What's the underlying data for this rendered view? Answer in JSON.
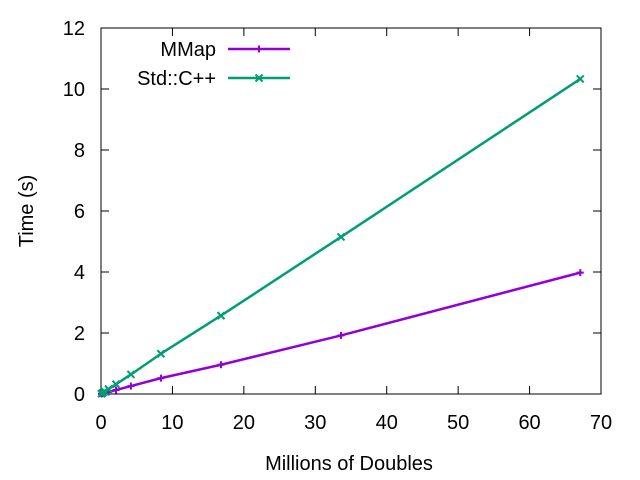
{
  "chart_data": {
    "type": "line",
    "title": "",
    "xlabel": "Millions of Doubles",
    "ylabel": "Time (s)",
    "xlim": [
      0,
      70
    ],
    "ylim": [
      0,
      12
    ],
    "xticks": [
      0,
      10,
      20,
      30,
      40,
      50,
      60,
      70
    ],
    "yticks": [
      0,
      2,
      4,
      6,
      8,
      10,
      12
    ],
    "grid": false,
    "legend_position": "top-left",
    "series": [
      {
        "name": "MMap",
        "color": "#9400d3",
        "marker": "plus",
        "x": [
          0.065,
          0.131,
          0.262,
          0.524,
          1.05,
          2.1,
          4.19,
          8.39,
          16.8,
          33.6,
          67.1
        ],
        "y": [
          0.004,
          0.008,
          0.016,
          0.032,
          0.065,
          0.13,
          0.26,
          0.52,
          0.96,
          1.92,
          3.98
        ]
      },
      {
        "name": "Std::C++",
        "color": "#009e73",
        "marker": "cross",
        "x": [
          0.065,
          0.131,
          0.262,
          0.524,
          1.05,
          2.1,
          4.19,
          8.39,
          16.8,
          33.6,
          67.1
        ],
        "y": [
          0.01,
          0.02,
          0.04,
          0.08,
          0.16,
          0.32,
          0.64,
          1.32,
          2.57,
          5.15,
          10.33
        ]
      }
    ]
  }
}
